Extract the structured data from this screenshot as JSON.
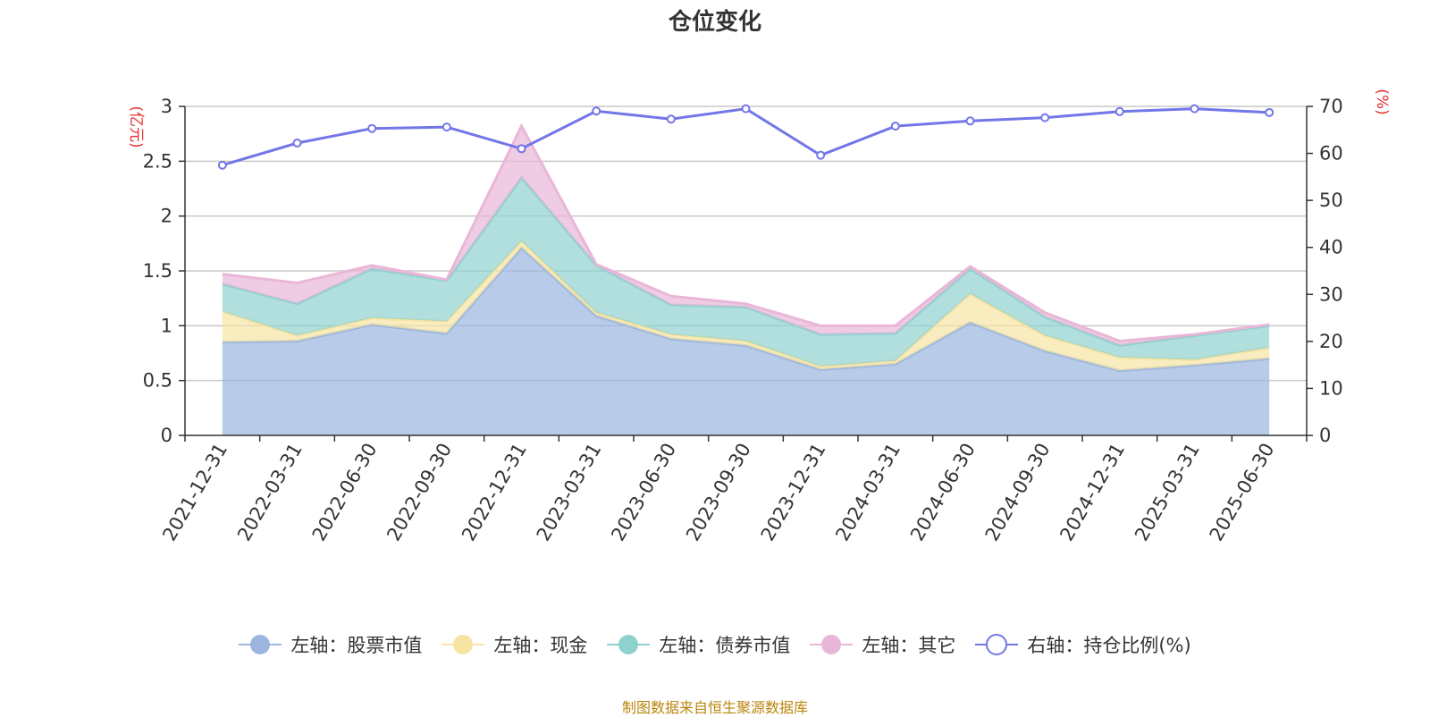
{
  "chart_data": {
    "type": "area",
    "title": "仓位变化",
    "y_left_label": "(亿元)",
    "y_right_label": "(%)",
    "categories": [
      "2021-12-31",
      "2022-03-31",
      "2022-06-30",
      "2022-09-30",
      "2022-12-31",
      "2023-03-31",
      "2023-06-30",
      "2023-09-30",
      "2023-12-31",
      "2024-03-31",
      "2024-06-30",
      "2024-09-30",
      "2024-12-31",
      "2025-03-31",
      "2025-06-30"
    ],
    "y_left_ticks": [
      "0",
      "0.5",
      "1",
      "1.5",
      "2",
      "2.5",
      "3"
    ],
    "y_right_ticks": [
      "0",
      "10",
      "20",
      "30",
      "40",
      "50",
      "60",
      "70"
    ],
    "y_left_range": [
      0,
      3
    ],
    "y_right_range": [
      0,
      70
    ],
    "stacked": true,
    "grid": true,
    "legend_position": "bottom",
    "series": [
      {
        "name": "左轴：股票市值",
        "axis": "left",
        "kind": "area",
        "color": "#9ab5de",
        "values": [
          0.85,
          0.86,
          1.01,
          0.93,
          1.71,
          1.09,
          0.88,
          0.82,
          0.6,
          0.65,
          1.03,
          0.77,
          0.59,
          0.64,
          0.7
        ]
      },
      {
        "name": "左轴：现金",
        "axis": "left",
        "kind": "area",
        "color": "#f7e4a2",
        "values": [
          0.28,
          0.05,
          0.06,
          0.11,
          0.06,
          0.03,
          0.04,
          0.04,
          0.03,
          0.03,
          0.26,
          0.14,
          0.12,
          0.05,
          0.1
        ]
      },
      {
        "name": "左轴：债券市值",
        "axis": "left",
        "kind": "area",
        "color": "#8fd1cf",
        "values": [
          0.25,
          0.29,
          0.45,
          0.37,
          0.58,
          0.43,
          0.27,
          0.31,
          0.29,
          0.25,
          0.23,
          0.17,
          0.11,
          0.22,
          0.2
        ]
      },
      {
        "name": "左轴：其它",
        "axis": "left",
        "kind": "area",
        "color": "#e9b6d8",
        "values": [
          0.09,
          0.19,
          0.03,
          0.01,
          0.47,
          0.01,
          0.08,
          0.03,
          0.08,
          0.07,
          0.02,
          0.04,
          0.04,
          0.01,
          0.01
        ]
      },
      {
        "name": "右轴：持仓比例(%)",
        "axis": "right",
        "kind": "line",
        "color": "#7276e8",
        "values": [
          57.5,
          62.2,
          65.3,
          65.6,
          61.0,
          69.0,
          67.3,
          69.5,
          59.6,
          65.8,
          66.9,
          67.6,
          68.9,
          69.5,
          68.7
        ]
      }
    ]
  },
  "source_note": "制图数据来自恒生聚源数据库"
}
